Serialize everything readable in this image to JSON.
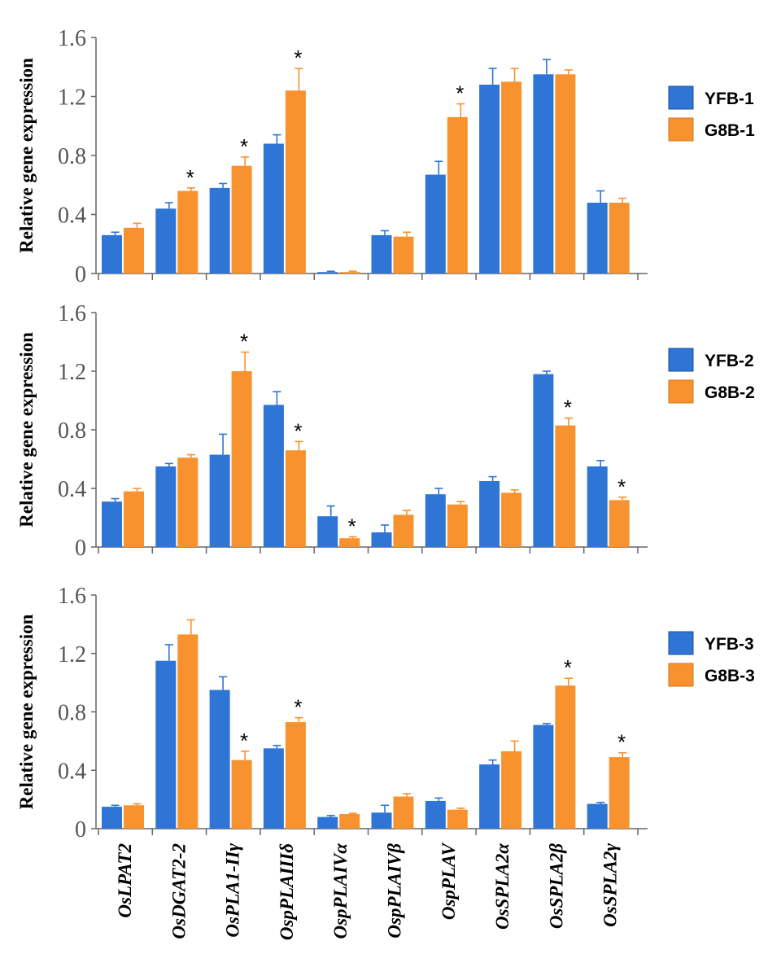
{
  "chart_data": {
    "type": "bar",
    "ylabel": "Relative gene expression",
    "ylim": [
      0,
      1.6
    ],
    "yticks": [
      "0",
      "0.4",
      "0.8",
      "1.2",
      "1.6"
    ],
    "yticks_values": [
      0,
      0.4,
      0.8,
      1.2,
      1.6
    ],
    "categories": [
      "OsLPAT2",
      "OsDGAT2-2",
      "OsPLA1-IIγ",
      "OspPLAIIIδ",
      "OspPLAIVα",
      "OspPLAIVβ",
      "OspPLAV",
      "OsSPLA2α",
      "OsSPLA2β",
      "OsSPLA2γ"
    ],
    "colors": {
      "blue": "#2E75D6",
      "orange": "#F8922E"
    },
    "significance_marker": "*",
    "panels": [
      {
        "series": [
          {
            "name": "YFB-1",
            "values": [
              0.26,
              0.44,
              0.58,
              0.88,
              0.01,
              0.26,
              0.67,
              1.28,
              1.35,
              0.48
            ],
            "errors": [
              0.02,
              0.04,
              0.03,
              0.06,
              0.005,
              0.03,
              0.09,
              0.11,
              0.1,
              0.08
            ]
          },
          {
            "name": "G8B-1",
            "values": [
              0.31,
              0.56,
              0.73,
              1.24,
              0.01,
              0.25,
              1.06,
              1.3,
              1.35,
              0.48
            ],
            "errors": [
              0.03,
              0.02,
              0.06,
              0.15,
              0.005,
              0.03,
              0.09,
              0.09,
              0.03,
              0.03
            ],
            "significant": [
              false,
              true,
              true,
              true,
              false,
              false,
              true,
              false,
              false,
              false
            ]
          }
        ]
      },
      {
        "series": [
          {
            "name": "YFB-2",
            "values": [
              0.31,
              0.55,
              0.63,
              0.97,
              0.21,
              0.1,
              0.36,
              0.45,
              1.18,
              0.55
            ],
            "errors": [
              0.02,
              0.02,
              0.14,
              0.09,
              0.07,
              0.05,
              0.04,
              0.03,
              0.02,
              0.04
            ]
          },
          {
            "name": "G8B-2",
            "values": [
              0.38,
              0.61,
              1.2,
              0.66,
              0.06,
              0.22,
              0.29,
              0.37,
              0.83,
              0.32
            ],
            "errors": [
              0.02,
              0.02,
              0.13,
              0.06,
              0.01,
              0.03,
              0.02,
              0.02,
              0.05,
              0.02
            ],
            "significant": [
              false,
              false,
              true,
              true,
              true,
              false,
              false,
              false,
              true,
              true
            ]
          }
        ]
      },
      {
        "series": [
          {
            "name": "YFB-3",
            "values": [
              0.15,
              1.15,
              0.95,
              0.55,
              0.08,
              0.11,
              0.19,
              0.44,
              0.71,
              0.17
            ],
            "errors": [
              0.01,
              0.11,
              0.09,
              0.02,
              0.01,
              0.05,
              0.02,
              0.03,
              0.01,
              0.01
            ]
          },
          {
            "name": "G8B-3",
            "values": [
              0.16,
              1.33,
              0.47,
              0.73,
              0.1,
              0.22,
              0.13,
              0.53,
              0.98,
              0.49
            ],
            "errors": [
              0.01,
              0.1,
              0.06,
              0.03,
              0.005,
              0.02,
              0.01,
              0.07,
              0.05,
              0.03
            ],
            "significant": [
              false,
              false,
              true,
              true,
              false,
              false,
              false,
              false,
              true,
              true
            ]
          }
        ]
      }
    ]
  }
}
